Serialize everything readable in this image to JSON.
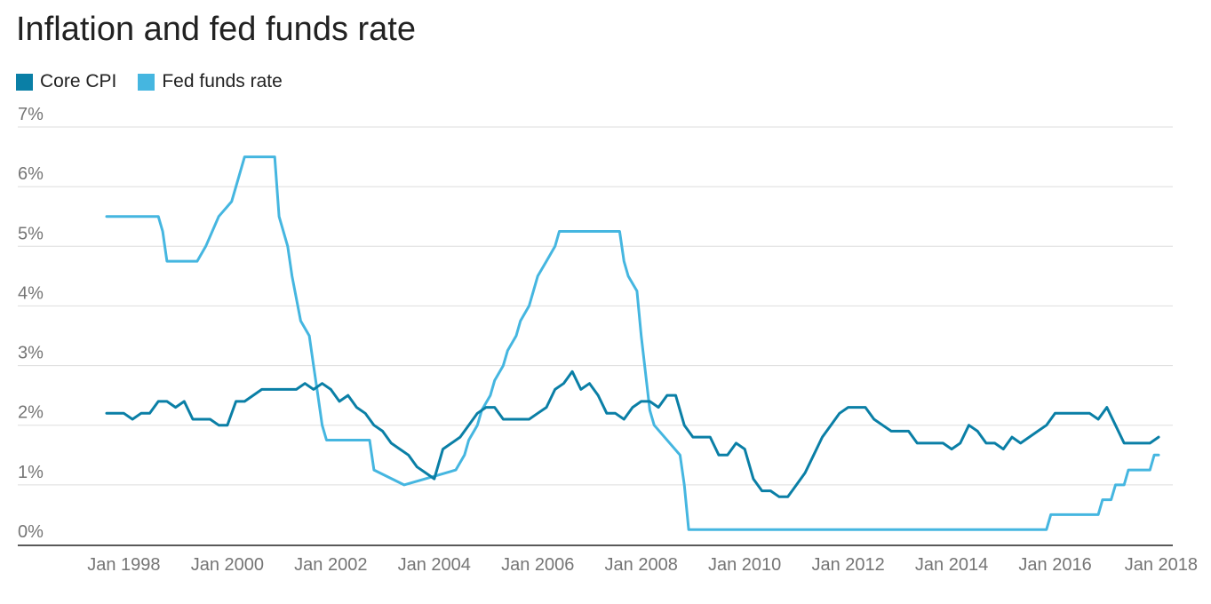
{
  "chart_data": {
    "type": "line",
    "title": "Inflation and fed funds rate",
    "xlabel": "",
    "ylabel": "",
    "ylim": [
      0,
      7
    ],
    "xlim": [
      "1997-09",
      "2018-01"
    ],
    "grid": true,
    "legend_position": "top-left",
    "y_ticks": [
      {
        "value": 0,
        "label": "0%"
      },
      {
        "value": 1,
        "label": "1%"
      },
      {
        "value": 2,
        "label": "2%"
      },
      {
        "value": 3,
        "label": "3%"
      },
      {
        "value": 4,
        "label": "4%"
      },
      {
        "value": 5,
        "label": "5%"
      },
      {
        "value": 6,
        "label": "6%"
      },
      {
        "value": 7,
        "label": "7%"
      }
    ],
    "x_ticks": [
      {
        "value": "1998-01",
        "label": "Jan 1998"
      },
      {
        "value": "2000-01",
        "label": "Jan 2000"
      },
      {
        "value": "2002-01",
        "label": "Jan 2002"
      },
      {
        "value": "2004-01",
        "label": "Jan 2004"
      },
      {
        "value": "2006-01",
        "label": "Jan 2006"
      },
      {
        "value": "2008-01",
        "label": "Jan 2008"
      },
      {
        "value": "2010-01",
        "label": "Jan 2010"
      },
      {
        "value": "2012-01",
        "label": "Jan 2012"
      },
      {
        "value": "2014-01",
        "label": "Jan 2014"
      },
      {
        "value": "2016-01",
        "label": "Jan 2016"
      },
      {
        "value": "2018-01",
        "label": "Jan 2018"
      }
    ],
    "series": [
      {
        "name": "Core CPI",
        "color": "#0a7fa6",
        "points": [
          [
            "1997-09",
            2.2
          ],
          [
            "1997-11",
            2.2
          ],
          [
            "1998-01",
            2.2
          ],
          [
            "1998-03",
            2.1
          ],
          [
            "1998-05",
            2.2
          ],
          [
            "1998-07",
            2.2
          ],
          [
            "1998-09",
            2.4
          ],
          [
            "1998-11",
            2.4
          ],
          [
            "1999-01",
            2.3
          ],
          [
            "1999-03",
            2.4
          ],
          [
            "1999-05",
            2.1
          ],
          [
            "1999-07",
            2.1
          ],
          [
            "1999-09",
            2.1
          ],
          [
            "1999-11",
            2.0
          ],
          [
            "2000-01",
            2.0
          ],
          [
            "2000-03",
            2.4
          ],
          [
            "2000-05",
            2.4
          ],
          [
            "2000-07",
            2.5
          ],
          [
            "2000-09",
            2.6
          ],
          [
            "2000-11",
            2.6
          ],
          [
            "2001-01",
            2.6
          ],
          [
            "2001-03",
            2.6
          ],
          [
            "2001-05",
            2.6
          ],
          [
            "2001-07",
            2.7
          ],
          [
            "2001-09",
            2.6
          ],
          [
            "2001-11",
            2.7
          ],
          [
            "2002-01",
            2.6
          ],
          [
            "2002-03",
            2.4
          ],
          [
            "2002-05",
            2.5
          ],
          [
            "2002-07",
            2.3
          ],
          [
            "2002-09",
            2.2
          ],
          [
            "2002-11",
            2.0
          ],
          [
            "2003-01",
            1.9
          ],
          [
            "2003-03",
            1.7
          ],
          [
            "2003-05",
            1.6
          ],
          [
            "2003-07",
            1.5
          ],
          [
            "2003-09",
            1.3
          ],
          [
            "2003-11",
            1.2
          ],
          [
            "2004-01",
            1.1
          ],
          [
            "2004-03",
            1.6
          ],
          [
            "2004-05",
            1.7
          ],
          [
            "2004-07",
            1.8
          ],
          [
            "2004-09",
            2.0
          ],
          [
            "2004-11",
            2.2
          ],
          [
            "2005-01",
            2.3
          ],
          [
            "2005-03",
            2.3
          ],
          [
            "2005-05",
            2.1
          ],
          [
            "2005-07",
            2.1
          ],
          [
            "2005-09",
            2.1
          ],
          [
            "2005-11",
            2.1
          ],
          [
            "2006-01",
            2.2
          ],
          [
            "2006-03",
            2.3
          ],
          [
            "2006-05",
            2.6
          ],
          [
            "2006-07",
            2.7
          ],
          [
            "2006-09",
            2.9
          ],
          [
            "2006-11",
            2.6
          ],
          [
            "2007-01",
            2.7
          ],
          [
            "2007-03",
            2.5
          ],
          [
            "2007-05",
            2.2
          ],
          [
            "2007-07",
            2.2
          ],
          [
            "2007-09",
            2.1
          ],
          [
            "2007-11",
            2.3
          ],
          [
            "2008-01",
            2.4
          ],
          [
            "2008-03",
            2.4
          ],
          [
            "2008-05",
            2.3
          ],
          [
            "2008-07",
            2.5
          ],
          [
            "2008-09",
            2.5
          ],
          [
            "2008-11",
            2.0
          ],
          [
            "2009-01",
            1.8
          ],
          [
            "2009-03",
            1.8
          ],
          [
            "2009-05",
            1.8
          ],
          [
            "2009-07",
            1.5
          ],
          [
            "2009-09",
            1.5
          ],
          [
            "2009-11",
            1.7
          ],
          [
            "2010-01",
            1.6
          ],
          [
            "2010-03",
            1.1
          ],
          [
            "2010-05",
            0.9
          ],
          [
            "2010-07",
            0.9
          ],
          [
            "2010-09",
            0.8
          ],
          [
            "2010-11",
            0.8
          ],
          [
            "2011-01",
            1.0
          ],
          [
            "2011-03",
            1.2
          ],
          [
            "2011-05",
            1.5
          ],
          [
            "2011-07",
            1.8
          ],
          [
            "2011-09",
            2.0
          ],
          [
            "2011-11",
            2.2
          ],
          [
            "2012-01",
            2.3
          ],
          [
            "2012-03",
            2.3
          ],
          [
            "2012-05",
            2.3
          ],
          [
            "2012-07",
            2.1
          ],
          [
            "2012-09",
            2.0
          ],
          [
            "2012-11",
            1.9
          ],
          [
            "2013-01",
            1.9
          ],
          [
            "2013-03",
            1.9
          ],
          [
            "2013-05",
            1.7
          ],
          [
            "2013-07",
            1.7
          ],
          [
            "2013-09",
            1.7
          ],
          [
            "2013-11",
            1.7
          ],
          [
            "2014-01",
            1.6
          ],
          [
            "2014-03",
            1.7
          ],
          [
            "2014-05",
            2.0
          ],
          [
            "2014-07",
            1.9
          ],
          [
            "2014-09",
            1.7
          ],
          [
            "2014-11",
            1.7
          ],
          [
            "2015-01",
            1.6
          ],
          [
            "2015-03",
            1.8
          ],
          [
            "2015-05",
            1.7
          ],
          [
            "2015-07",
            1.8
          ],
          [
            "2015-09",
            1.9
          ],
          [
            "2015-11",
            2.0
          ],
          [
            "2016-01",
            2.2
          ],
          [
            "2016-03",
            2.2
          ],
          [
            "2016-05",
            2.2
          ],
          [
            "2016-07",
            2.2
          ],
          [
            "2016-09",
            2.2
          ],
          [
            "2016-11",
            2.1
          ],
          [
            "2017-01",
            2.3
          ],
          [
            "2017-03",
            2.0
          ],
          [
            "2017-05",
            1.7
          ],
          [
            "2017-07",
            1.7
          ],
          [
            "2017-09",
            1.7
          ],
          [
            "2017-11",
            1.7
          ],
          [
            "2018-01",
            1.8
          ]
        ]
      },
      {
        "name": "Fed funds rate",
        "color": "#45b6e0",
        "points": [
          [
            "1997-09",
            5.5
          ],
          [
            "1998-09",
            5.5
          ],
          [
            "1998-10",
            5.25
          ],
          [
            "1998-11",
            4.75
          ],
          [
            "1999-06",
            4.75
          ],
          [
            "1999-08",
            5.0
          ],
          [
            "1999-11",
            5.5
          ],
          [
            "2000-02",
            5.75
          ],
          [
            "2000-03",
            6.0
          ],
          [
            "2000-05",
            6.5
          ],
          [
            "2000-12",
            6.5
          ],
          [
            "2001-01",
            5.5
          ],
          [
            "2001-03",
            5.0
          ],
          [
            "2001-04",
            4.5
          ],
          [
            "2001-06",
            3.75
          ],
          [
            "2001-08",
            3.5
          ],
          [
            "2001-09",
            3.0
          ],
          [
            "2001-10",
            2.5
          ],
          [
            "2001-11",
            2.0
          ],
          [
            "2001-12",
            1.75
          ],
          [
            "2002-10",
            1.75
          ],
          [
            "2002-11",
            1.25
          ],
          [
            "2003-06",
            1.0
          ],
          [
            "2004-06",
            1.25
          ],
          [
            "2004-08",
            1.5
          ],
          [
            "2004-09",
            1.75
          ],
          [
            "2004-11",
            2.0
          ],
          [
            "2004-12",
            2.25
          ],
          [
            "2005-02",
            2.5
          ],
          [
            "2005-03",
            2.75
          ],
          [
            "2005-05",
            3.0
          ],
          [
            "2005-06",
            3.25
          ],
          [
            "2005-08",
            3.5
          ],
          [
            "2005-09",
            3.75
          ],
          [
            "2005-11",
            4.0
          ],
          [
            "2005-12",
            4.25
          ],
          [
            "2006-01",
            4.5
          ],
          [
            "2006-03",
            4.75
          ],
          [
            "2006-05",
            5.0
          ],
          [
            "2006-06",
            5.25
          ],
          [
            "2007-08",
            5.25
          ],
          [
            "2007-09",
            4.75
          ],
          [
            "2007-10",
            4.5
          ],
          [
            "2007-12",
            4.25
          ],
          [
            "2008-01",
            3.5
          ],
          [
            "2008-03",
            2.25
          ],
          [
            "2008-04",
            2.0
          ],
          [
            "2008-10",
            1.5
          ],
          [
            "2008-11",
            1.0
          ],
          [
            "2008-12",
            0.25
          ],
          [
            "2015-11",
            0.25
          ],
          [
            "2015-12",
            0.5
          ],
          [
            "2016-11",
            0.5
          ],
          [
            "2016-12",
            0.75
          ],
          [
            "2017-02",
            0.75
          ],
          [
            "2017-03",
            1.0
          ],
          [
            "2017-05",
            1.0
          ],
          [
            "2017-06",
            1.25
          ],
          [
            "2017-11",
            1.25
          ],
          [
            "2017-12",
            1.5
          ],
          [
            "2018-01",
            1.5
          ]
        ]
      }
    ]
  }
}
